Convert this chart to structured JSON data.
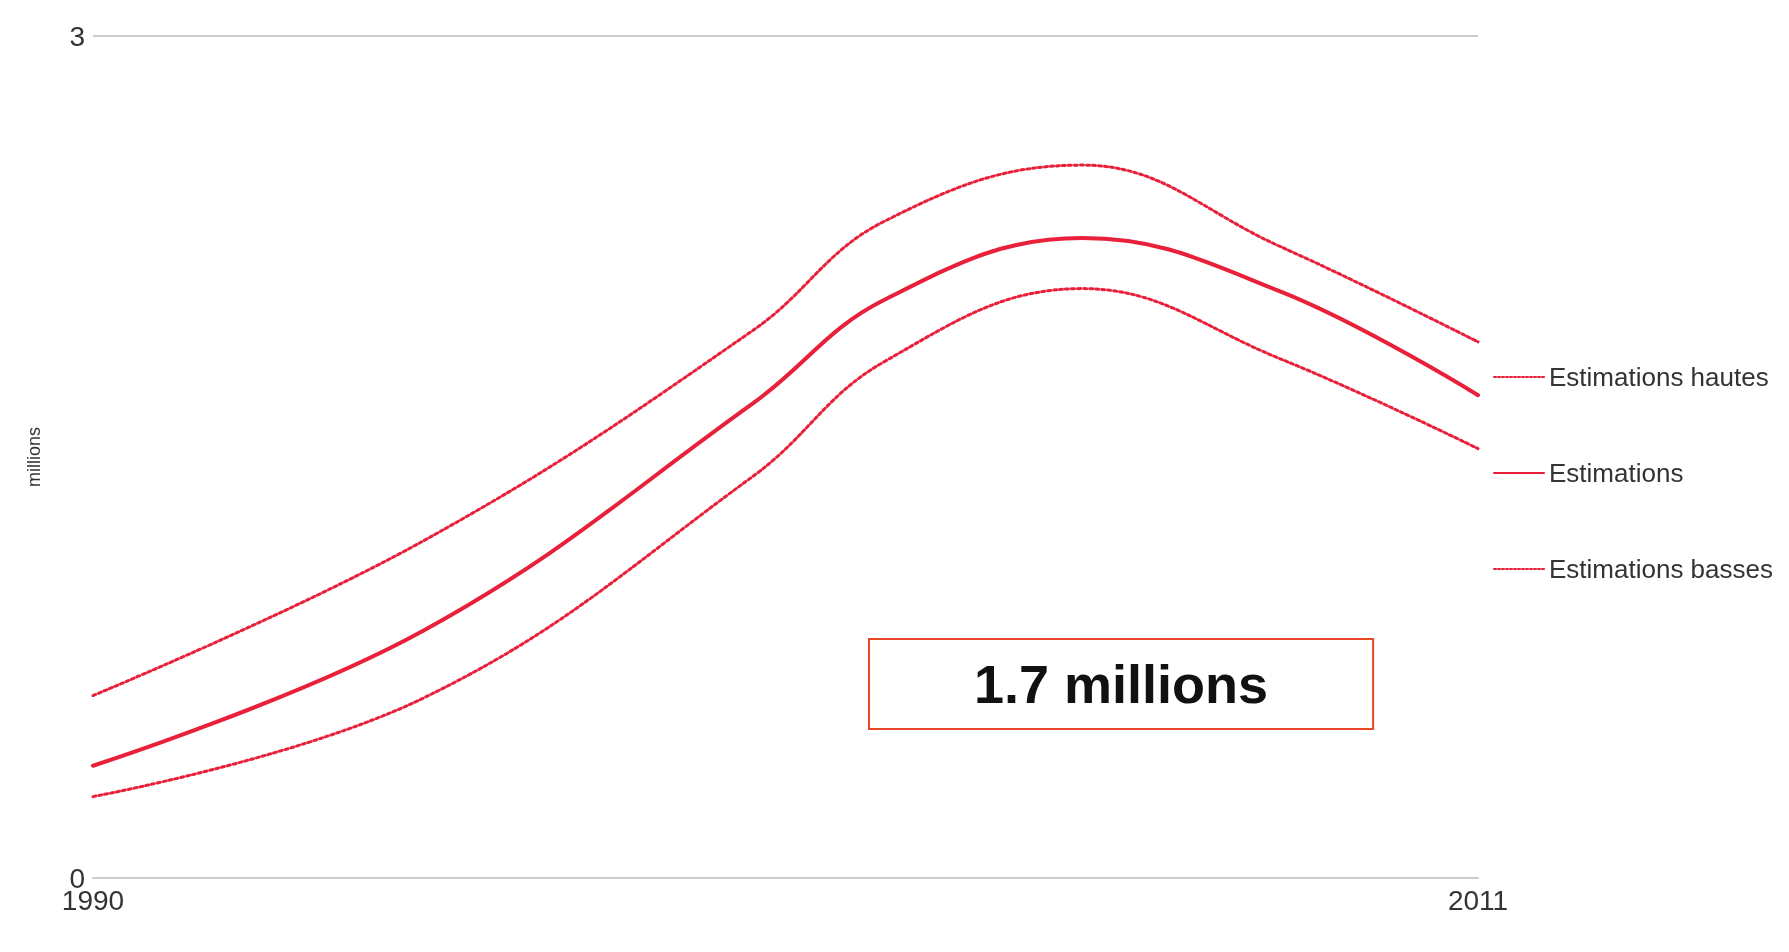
{
  "chart_data": {
    "type": "line",
    "ylabel": "millions",
    "x": [
      1990,
      1995,
      2000,
      2002,
      2005,
      2008,
      2011
    ],
    "series": [
      {
        "name": "Estimations hautes",
        "color": "#e8203a",
        "line_style": "dotted",
        "values": [
          0.65,
          1.2,
          1.95,
          2.34,
          2.54,
          2.25,
          1.91
        ]
      },
      {
        "name": "Estimations",
        "color": "#e8203a",
        "line_style": "solid",
        "values": [
          0.4,
          0.88,
          1.69,
          2.06,
          2.28,
          2.09,
          1.72
        ]
      },
      {
        "name": "Estimations basses",
        "color": "#e8203a",
        "line_style": "dotted",
        "values": [
          0.29,
          0.64,
          1.43,
          1.84,
          2.1,
          1.85,
          1.53
        ]
      }
    ],
    "xlim": [
      1990,
      2011
    ],
    "xticks": [
      1990,
      2011
    ],
    "ylim": [
      0,
      3
    ],
    "yticks": [
      0,
      3
    ],
    "grid": false,
    "legend": "right",
    "marker": "none",
    "annotations": [
      "1.7 millions"
    ]
  }
}
